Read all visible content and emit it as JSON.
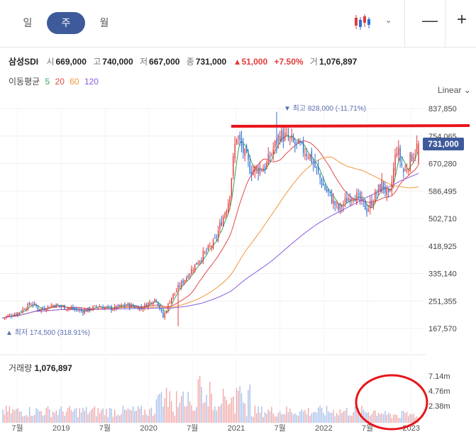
{
  "period_tabs": [
    {
      "label": "일",
      "active": false
    },
    {
      "label": "주",
      "active": true
    },
    {
      "label": "월",
      "active": false
    }
  ],
  "toolbar": {
    "chart_type_icon": "candlestick-icon",
    "zoom_out": "—",
    "zoom_in": "+",
    "chevron": "⌄"
  },
  "quote": {
    "name": "삼성SDI",
    "open_label": "시",
    "open": "669,000",
    "high_label": "고",
    "high": "740,000",
    "low_label": "저",
    "low": "667,000",
    "close_label": "종",
    "close": "731,000",
    "change": "▲51,000",
    "change_pct": "+7.50%",
    "volume_label": "거",
    "volume": "1,076,897"
  },
  "moving_average": {
    "label": "이동평균",
    "periods": [
      {
        "value": "5",
        "color": "#3aa655"
      },
      {
        "value": "20",
        "color": "#e24848"
      },
      {
        "value": "60",
        "color": "#f0963c"
      },
      {
        "value": "120",
        "color": "#8a5ce0"
      }
    ]
  },
  "scale_mode": "Linear ⌄",
  "current_price_badge": "731,000",
  "annotations": {
    "high_marker": "▼ 최고 828,000 (-11.71%)",
    "low_marker": "▲ 최저 174,500 (318.91%)"
  },
  "colors": {
    "up": "#e23b3b",
    "down": "#2f6fd6",
    "accent": "#3e5a9a",
    "annotation_red": "#e8151b"
  },
  "volume_panel": {
    "title_label": "거래량",
    "title_value": "1,076,897",
    "scale_labels": [
      "7.14m",
      "4.76m",
      "2.38m"
    ]
  },
  "chart_data": {
    "type": "candlestick",
    "price_scale": "linear",
    "y_tick_labels": [
      "837,850",
      "754,065",
      "670,280",
      "586,495",
      "502,710",
      "418,925",
      "335,140",
      "251,355",
      "167,570"
    ],
    "y_ticks": [
      837850,
      754065,
      670280,
      586495,
      502710,
      418925,
      335140,
      251355,
      167570
    ],
    "x_tick_labels": [
      "7월",
      "2019",
      "7월",
      "2020",
      "7월",
      "2021",
      "7월",
      "2022",
      "7월",
      "2023"
    ],
    "close_path": [
      [
        "2018-05",
        200000
      ],
      [
        "2018-07",
        215000
      ],
      [
        "2018-09",
        245000
      ],
      [
        "2018-10",
        225000
      ],
      [
        "2018-12",
        240000
      ],
      [
        "2019-02",
        230000
      ],
      [
        "2019-04",
        220000
      ],
      [
        "2019-06",
        235000
      ],
      [
        "2019-08",
        228000
      ],
      [
        "2019-10",
        240000
      ],
      [
        "2019-12",
        230000
      ],
      [
        "2020-02",
        260000
      ],
      [
        "2020-03",
        200000
      ],
      [
        "2020-04",
        260000
      ],
      [
        "2020-06",
        320000
      ],
      [
        "2020-08",
        380000
      ],
      [
        "2020-10",
        430000
      ],
      [
        "2020-12",
        560000
      ],
      [
        "2021-01",
        760000
      ],
      [
        "2021-03",
        650000
      ],
      [
        "2021-05",
        660000
      ],
      [
        "2021-07",
        760000
      ],
      [
        "2021-09",
        730000
      ],
      [
        "2021-11",
        700000
      ],
      [
        "2022-01",
        600000
      ],
      [
        "2022-03",
        530000
      ],
      [
        "2022-05",
        580000
      ],
      [
        "2022-07",
        530000
      ],
      [
        "2022-09",
        610000
      ],
      [
        "2022-10",
        560000
      ],
      [
        "2022-11",
        720000
      ],
      [
        "2022-12",
        640000
      ],
      [
        "2023-01",
        690000
      ],
      [
        "2023-02",
        731000
      ]
    ]
  }
}
